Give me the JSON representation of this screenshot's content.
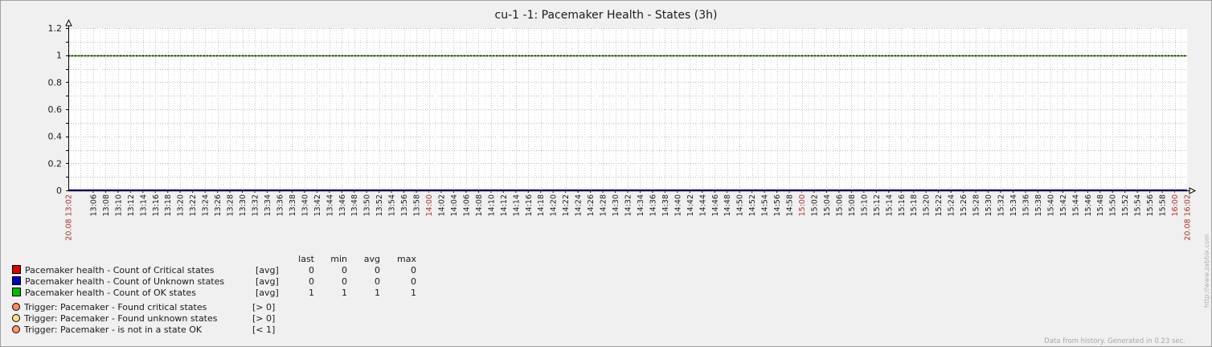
{
  "chart_data": {
    "type": "line",
    "title": "cu-1 -1: Pacemaker Health - States (3h)",
    "ylim": [
      0,
      1.2
    ],
    "y_ticks": [
      "0",
      "0.2",
      "0.4",
      "0.6",
      "0.8",
      "1",
      "1.2"
    ],
    "x_start_label": "20.08 13:02",
    "x_end_label": "20.08 16:02",
    "x_ticks": [
      "13:06",
      "13:08",
      "13:10",
      "13:12",
      "13:14",
      "13:16",
      "13:18",
      "13:20",
      "13:22",
      "13:24",
      "13:26",
      "13:28",
      "13:30",
      "13:32",
      "13:34",
      "13:36",
      "13:38",
      "13:40",
      "13:42",
      "13:44",
      "13:46",
      "13:48",
      "13:50",
      "13:52",
      "13:54",
      "13:56",
      "13:58",
      "14:00",
      "14:02",
      "14:04",
      "14:06",
      "14:08",
      "14:10",
      "14:12",
      "14:14",
      "14:16",
      "14:18",
      "14:20",
      "14:22",
      "14:24",
      "14:26",
      "14:28",
      "14:30",
      "14:32",
      "14:34",
      "14:36",
      "14:38",
      "14:40",
      "14:42",
      "14:44",
      "14:46",
      "14:48",
      "14:50",
      "14:52",
      "14:54",
      "14:56",
      "14:58",
      "15:00",
      "15:02",
      "15:04",
      "15:06",
      "15:08",
      "15:10",
      "15:12",
      "15:14",
      "15:16",
      "15:18",
      "15:20",
      "15:22",
      "15:24",
      "15:26",
      "15:28",
      "15:30",
      "15:32",
      "15:34",
      "15:36",
      "15:38",
      "15:40",
      "15:42",
      "15:44",
      "15:46",
      "15:48",
      "15:50",
      "15:52",
      "15:54",
      "15:56",
      "15:58",
      "16:00"
    ],
    "major_ticks": [
      "14:00",
      "15:00",
      "16:00"
    ],
    "grid": true,
    "series": [
      {
        "name": "Pacemaker health - Count of Critical states",
        "func": "[avg]",
        "color": "#dd0000",
        "value": 0,
        "last": "0",
        "min": "0",
        "avg": "0",
        "max": "0"
      },
      {
        "name": "Pacemaker health - Count of Unknown states",
        "func": "[avg]",
        "color": "#0000bb",
        "value": 0,
        "last": "0",
        "min": "0",
        "avg": "0",
        "max": "0"
      },
      {
        "name": "Pacemaker health - Count of OK states",
        "func": "[avg]",
        "color": "#00bb00",
        "value": 1,
        "last": "1",
        "min": "1",
        "avg": "1",
        "max": "1"
      }
    ],
    "triggers": [
      {
        "label": "Trigger: Pacemaker - Found critical states",
        "cond": "[> 0]",
        "color": "#ff8866",
        "value": 0
      },
      {
        "label": "Trigger: Pacemaker - Found unknown states",
        "cond": "[> 0]",
        "color": "#ffdd88",
        "value": 0
      },
      {
        "label": "Trigger: Pacemaker - is not in a state OK",
        "cond": "[< 1]",
        "color": "#ff9966",
        "value": 1
      }
    ],
    "legend_headers": [
      "last",
      "min",
      "avg",
      "max"
    ]
  },
  "footer": "Data from history. Generated in 0.23 sec.",
  "watermark": "http://www.zabbix.com",
  "colors": {
    "background": "#f0f0f0",
    "plot": "#ffffff",
    "grid": "#bbbbbb",
    "axis": "#000000",
    "major": "#b03030"
  }
}
